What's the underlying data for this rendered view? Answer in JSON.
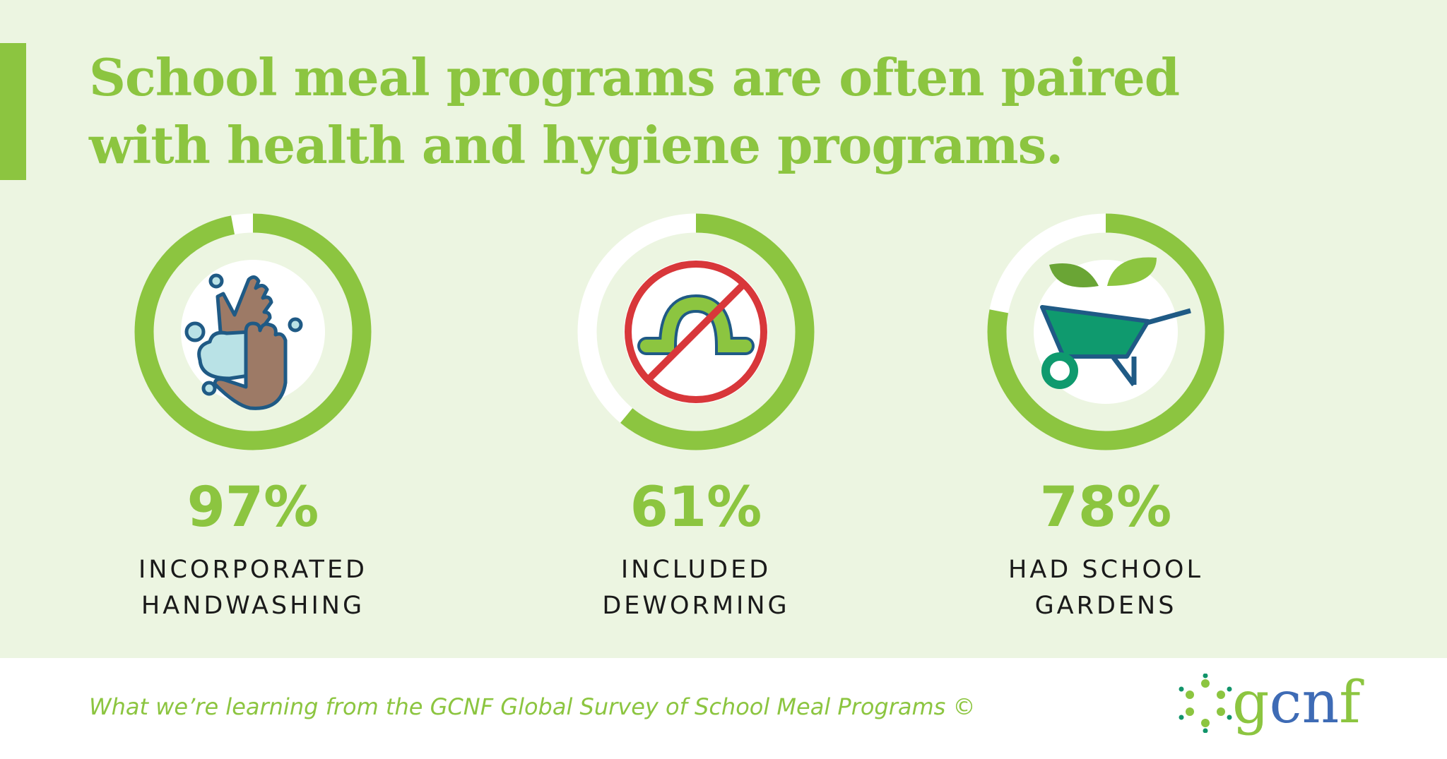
{
  "title_lines": [
    "School meal programs are often paired",
    "with health and hygiene programs."
  ],
  "stats": [
    {
      "percent": 97,
      "percent_label": "97%",
      "label_lines": [
        "INCORPORATED",
        "HANDWASHING"
      ],
      "icon": "handwashing-icon"
    },
    {
      "percent": 61,
      "percent_label": "61%",
      "label_lines": [
        "INCLUDED",
        "DEWORMING"
      ],
      "icon": "no-worm-icon"
    },
    {
      "percent": 78,
      "percent_label": "78%",
      "label_lines": [
        "HAD SCHOOL",
        "GARDENS"
      ],
      "icon": "wheelbarrow-plant-icon"
    }
  ],
  "footer": {
    "text": "What we’re learning from the GCNF Global Survey of School Meal Programs ©",
    "logo": {
      "letters": [
        "g",
        "c",
        "n",
        "f"
      ]
    }
  },
  "colors": {
    "accent": "#8cc540",
    "background": "#ecf5e1",
    "blue": "#3e6bb5"
  }
}
